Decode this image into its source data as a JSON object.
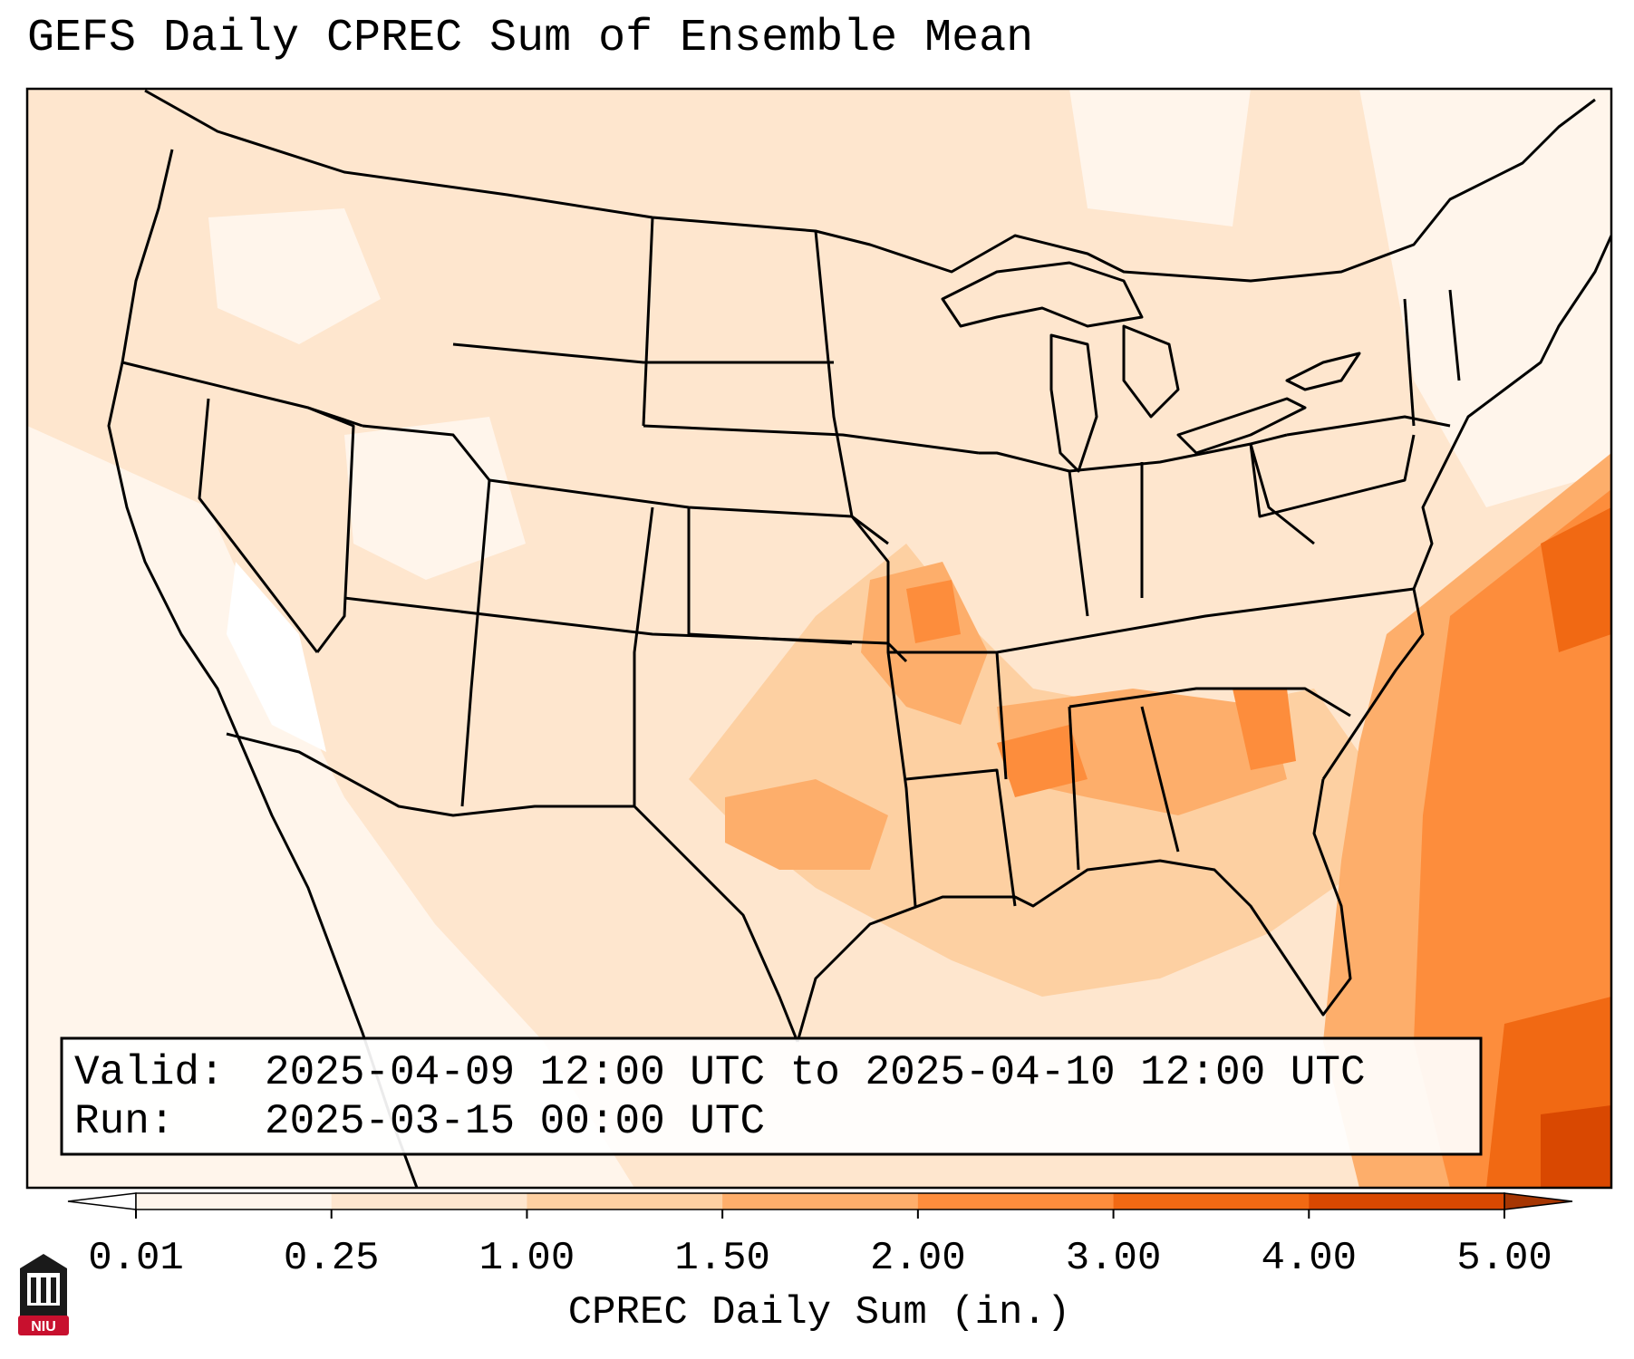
{
  "title": "GEFS Daily CPREC Sum of Ensemble Mean",
  "info": {
    "valid_label": "Valid:",
    "valid_value": "2025-04-09 12:00 UTC to 2025-04-10 12:00 UTC",
    "run_label": "Run:",
    "run_value": "2025-03-15 00:00 UTC"
  },
  "colorbar": {
    "label": "CPREC Daily Sum (in.)",
    "ticks": [
      "0.01",
      "0.25",
      "1.00",
      "1.50",
      "2.00",
      "3.00",
      "4.00",
      "5.00"
    ],
    "colors": [
      "#fff5eb",
      "#fee6ce",
      "#fdd0a2",
      "#fdae6b",
      "#fd8d3c",
      "#f16913",
      "#d94801"
    ],
    "under_color": "#ffffff",
    "over_color": "#a63603"
  },
  "logo": {
    "text": "NIU",
    "color": "#c8102e"
  }
}
